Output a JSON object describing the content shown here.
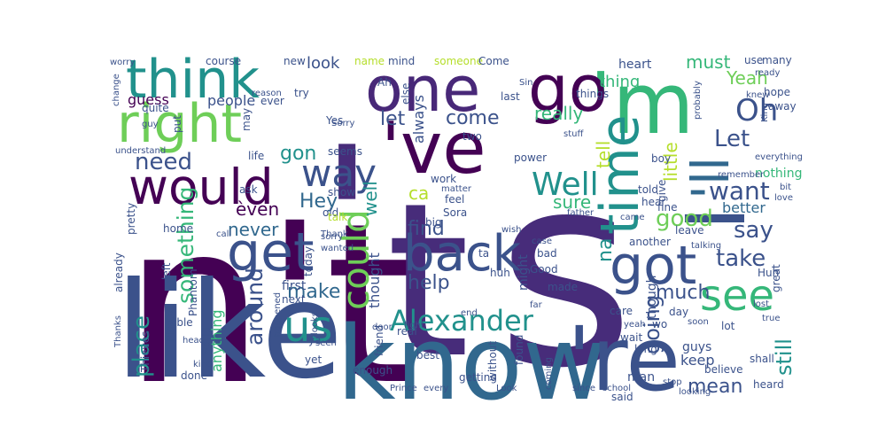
{
  "wordcloud": {
    "palette": {
      "dark_purple": "#472c7a",
      "indigo": "#3b528b",
      "blue": "#31688e",
      "teal": "#21918c",
      "green": "#35b779",
      "light_green": "#6ece58",
      "yellow_green": "#b5de2b",
      "deep": "#440154",
      "navy": "#2c4a7e"
    },
    "words": [
      {
        "text": "s",
        "color": "#472c7a"
      },
      {
        "text": "'",
        "color": "#472c7a"
      },
      {
        "text": "n't",
        "color": "#440154"
      },
      {
        "text": "t",
        "color": "#472c7a"
      },
      {
        "text": "like",
        "color": "#3b528b"
      },
      {
        "text": "know",
        "color": "#31688e"
      },
      {
        "text": "'re",
        "color": "#3b528b"
      },
      {
        "text": "one",
        "color": "#482878"
      },
      {
        "text": "'m",
        "color": "#35b779"
      },
      {
        "text": "'ve",
        "color": "#440154"
      },
      {
        "text": "go",
        "color": "#440154"
      },
      {
        "text": "I",
        "color": "#3b528b"
      },
      {
        "text": "'ll",
        "color": "#31688e"
      },
      {
        "text": "right",
        "color": "#6ece58"
      },
      {
        "text": "think",
        "color": "#21918c"
      },
      {
        "text": "time",
        "color": "#21918c"
      },
      {
        "text": "get",
        "color": "#3b528b"
      },
      {
        "text": "would",
        "color": "#440154"
      },
      {
        "text": "got",
        "color": "#3b528b"
      },
      {
        "text": "back",
        "color": "#3b528b"
      },
      {
        "text": "could",
        "color": "#6ece58"
      },
      {
        "text": "us",
        "color": "#21918c"
      },
      {
        "text": "see",
        "color": "#35b779"
      },
      {
        "text": "way",
        "color": "#3b528b"
      },
      {
        "text": "Well",
        "color": "#21918c"
      },
      {
        "text": "Alexander",
        "color": "#21918c"
      },
      {
        "text": "Oh",
        "color": "#3b528b"
      },
      {
        "text": "want",
        "color": "#3b528b"
      },
      {
        "text": "need",
        "color": "#3b528b"
      },
      {
        "text": "Let",
        "color": "#3b528b"
      },
      {
        "text": "good",
        "color": "#6ece58"
      },
      {
        "text": "something",
        "color": "#35b779"
      },
      {
        "text": "take",
        "color": "#3b528b"
      },
      {
        "text": "say",
        "color": "#3b528b"
      },
      {
        "text": "place",
        "color": "#21918c"
      },
      {
        "text": "make",
        "color": "#31688e"
      },
      {
        "text": "never",
        "color": "#31688e"
      },
      {
        "text": "around",
        "color": "#3b528b"
      },
      {
        "text": "help",
        "color": "#3b528b"
      },
      {
        "text": "find",
        "color": "#3b528b"
      },
      {
        "text": "Hey",
        "color": "#31688e"
      },
      {
        "text": "mean",
        "color": "#3b528b"
      },
      {
        "text": "much",
        "color": "#3b528b"
      },
      {
        "text": "come",
        "color": "#3b528b"
      },
      {
        "text": "let",
        "color": "#3b528b"
      },
      {
        "text": "look",
        "color": "#3b528b"
      },
      {
        "text": "must",
        "color": "#35b779"
      },
      {
        "text": "Yeah",
        "color": "#6ece58"
      },
      {
        "text": "really",
        "color": "#35b779"
      },
      {
        "text": "going",
        "color": "#3b528b"
      },
      {
        "text": "still",
        "color": "#21918c"
      },
      {
        "text": "sure",
        "color": "#35b779"
      },
      {
        "text": "tell",
        "color": "#b5de2b"
      },
      {
        "text": "little",
        "color": "#b5de2b"
      },
      {
        "text": "na",
        "color": "#21918c"
      },
      {
        "text": "gon",
        "color": "#21918c"
      },
      {
        "text": "ca",
        "color": "#b5de2b"
      },
      {
        "text": "èven",
        "color": "#440154"
      },
      {
        "text": "well",
        "color": "#21918c"
      },
      {
        "text": "thing",
        "color": "#35b779"
      },
      {
        "text": "better",
        "color": "#31688e"
      },
      {
        "text": "keep",
        "color": "#3b528b"
      },
      {
        "text": "always",
        "color": "#3b528b"
      },
      {
        "text": "thought",
        "color": "#3b528b"
      },
      {
        "text": "anything",
        "color": "#35b779"
      },
      {
        "text": "people",
        "color": "#3b528b"
      },
      {
        "text": "guess",
        "color": "#440154"
      },
      {
        "text": "heart",
        "color": "#3b528b"
      },
      {
        "text": "first",
        "color": "#3b528b"
      },
      {
        "text": "made",
        "color": "#3b528b"
      },
      {
        "text": "day",
        "color": "#3b528b"
      },
      {
        "text": "guys",
        "color": "#3b528b"
      },
      {
        "text": "man",
        "color": "#3b528b"
      },
      {
        "text": "said",
        "color": "#3b528b"
      },
      {
        "text": "long",
        "color": "#3b528b"
      },
      {
        "text": "real",
        "color": "#3b528b"
      },
      {
        "text": "believe",
        "color": "#3b528b"
      },
      {
        "text": "lot",
        "color": "#3b528b"
      },
      {
        "text": "enough",
        "color": "#3b528b"
      },
      {
        "text": "best",
        "color": "#3b528b"
      },
      {
        "text": "nothing",
        "color": "#35b779"
      },
      {
        "text": "work",
        "color": "#3b528b"
      },
      {
        "text": "care",
        "color": "#3b528b"
      },
      {
        "text": "though",
        "color": "#3b528b"
      },
      {
        "text": "heard",
        "color": "#3b528b"
      },
      {
        "text": "shall",
        "color": "#3b528b"
      },
      {
        "text": "might",
        "color": "#3b528b"
      },
      {
        "text": "next",
        "color": "#3b528b"
      },
      {
        "text": "give",
        "color": "#3b528b"
      },
      {
        "text": "world",
        "color": "#3b528b"
      },
      {
        "text": "put",
        "color": "#3b528b"
      },
      {
        "text": "quite",
        "color": "#3b528b"
      },
      {
        "text": "life",
        "color": "#3b528b"
      },
      {
        "text": "ask",
        "color": "#3b528b"
      },
      {
        "text": "left",
        "color": "#3b528b"
      },
      {
        "text": "home",
        "color": "#3b528b"
      },
      {
        "text": "Maybe",
        "color": "#3b528b"
      },
      {
        "text": "Phantom",
        "color": "#3b528b"
      },
      {
        "text": "Thieves",
        "color": "#3b528b"
      },
      {
        "text": "Sora",
        "color": "#3b528b"
      },
      {
        "text": "feel",
        "color": "#3b528b"
      },
      {
        "text": "things",
        "color": "#3b528b"
      },
      {
        "text": "last",
        "color": "#3b528b"
      },
      {
        "text": "hope",
        "color": "#3b528b"
      },
      {
        "text": "away",
        "color": "#3b528b"
      },
      {
        "text": "use",
        "color": "#3b528b"
      },
      {
        "text": "many",
        "color": "#3b528b"
      },
      {
        "text": "boy",
        "color": "#3b528b"
      },
      {
        "text": "told",
        "color": "#3b528b"
      },
      {
        "text": "power",
        "color": "#3b528b"
      },
      {
        "text": "Yes",
        "color": "#3b528b"
      },
      {
        "text": "Ah",
        "color": "#3b528b"
      },
      {
        "text": "mind",
        "color": "#3b528b"
      },
      {
        "text": "someone",
        "color": "#b5de2b"
      },
      {
        "text": "Come",
        "color": "#3b528b"
      },
      {
        "text": "course",
        "color": "#3b528b"
      },
      {
        "text": "name",
        "color": "#b5de2b"
      },
      {
        "text": "else",
        "color": "#3b528b"
      },
      {
        "text": "new",
        "color": "#3b528b"
      },
      {
        "text": "ever",
        "color": "#3b528b"
      },
      {
        "text": "try",
        "color": "#3b528b"
      },
      {
        "text": "may",
        "color": "#3b528b"
      },
      {
        "text": "seems",
        "color": "#3b528b"
      },
      {
        "text": "show",
        "color": "#3b528b"
      },
      {
        "text": "old",
        "color": "#3b528b"
      },
      {
        "text": "talk",
        "color": "#b5de2b"
      },
      {
        "text": "hear",
        "color": "#3b528b"
      },
      {
        "text": "fine",
        "color": "#3b528b"
      },
      {
        "text": "leave",
        "color": "#3b528b"
      },
      {
        "text": "another",
        "color": "#3b528b"
      },
      {
        "text": "wait",
        "color": "#3b528b"
      },
      {
        "text": "Good",
        "color": "#3b528b"
      },
      {
        "text": "huh",
        "color": "#3b528b"
      },
      {
        "text": "bad",
        "color": "#3b528b"
      },
      {
        "text": "ta",
        "color": "#3b528b"
      },
      {
        "text": "big",
        "color": "#3b528b"
      },
      {
        "text": "today",
        "color": "#3b528b"
      },
      {
        "text": "done",
        "color": "#3b528b"
      },
      {
        "text": "yet",
        "color": "#3b528b"
      },
      {
        "text": "ya",
        "color": "#3b528b"
      },
      {
        "text": "friend",
        "color": "#3b528b"
      },
      {
        "text": "getting",
        "color": "#3b528b"
      },
      {
        "text": "without",
        "color": "#3b528b"
      },
      {
        "text": "found",
        "color": "#3b528b"
      },
      {
        "text": "two",
        "color": "#3b528b"
      },
      {
        "text": "able",
        "color": "#3b528b"
      },
      {
        "text": "already",
        "color": "#3b528b"
      },
      {
        "text": "pretty",
        "color": "#3b528b"
      },
      {
        "text": "great",
        "color": "#3b528b"
      },
      {
        "text": "Huh",
        "color": "#3b528b"
      },
      {
        "text": "wo",
        "color": "#3b528b"
      },
      {
        "text": "worry",
        "color": "#3b528b"
      },
      {
        "text": "change",
        "color": "#3b528b"
      },
      {
        "text": "guy",
        "color": "#3b528b"
      },
      {
        "text": "understand",
        "color": "#3b528b"
      },
      {
        "text": "Sorry",
        "color": "#3b528b"
      },
      {
        "text": "stuff",
        "color": "#3b528b"
      },
      {
        "text": "probably",
        "color": "#3b528b"
      },
      {
        "text": "remember",
        "color": "#3b528b"
      },
      {
        "text": "everything",
        "color": "#3b528b"
      },
      {
        "text": "King",
        "color": "#3b528b"
      },
      {
        "text": "knew",
        "color": "#3b528b"
      },
      {
        "text": "ready",
        "color": "#3b528b"
      },
      {
        "text": "reason",
        "color": "#3b528b"
      },
      {
        "text": "Sin",
        "color": "#3b528b"
      },
      {
        "text": "matter",
        "color": "#3b528b"
      },
      {
        "text": "wish",
        "color": "#3b528b"
      },
      {
        "text": "case",
        "color": "#3b528b"
      },
      {
        "text": "father",
        "color": "#3b528b"
      },
      {
        "text": "came",
        "color": "#3b528b"
      },
      {
        "text": "talking",
        "color": "#3b528b"
      },
      {
        "text": "lost",
        "color": "#3b528b"
      },
      {
        "text": "true",
        "color": "#3b528b"
      },
      {
        "text": "soon",
        "color": "#3b528b"
      },
      {
        "text": "yeah",
        "color": "#3b528b"
      },
      {
        "text": "far",
        "color": "#3b528b"
      },
      {
        "text": "end",
        "color": "#3b528b"
      },
      {
        "text": "fight",
        "color": "#3b528b"
      },
      {
        "text": "door",
        "color": "#3b528b"
      },
      {
        "text": "looks",
        "color": "#3b528b"
      },
      {
        "text": "happened",
        "color": "#3b528b"
      },
      {
        "text": "sorry",
        "color": "#3b528b"
      },
      {
        "text": "wanted",
        "color": "#3b528b"
      },
      {
        "text": "Thank",
        "color": "#3b528b"
      },
      {
        "text": "call",
        "color": "#3b528b"
      },
      {
        "text": "Thanks",
        "color": "#3b528b"
      },
      {
        "text": "head",
        "color": "#3b528b"
      },
      {
        "text": "kind",
        "color": "#3b528b"
      },
      {
        "text": "seen",
        "color": "#3b528b"
      },
      {
        "text": "every",
        "color": "#3b528b"
      },
      {
        "text": "Prince",
        "color": "#3b528b"
      },
      {
        "text": "Look",
        "color": "#3b528b"
      },
      {
        "text": "coming",
        "color": "#3b528b"
      },
      {
        "text": "since",
        "color": "#3b528b"
      },
      {
        "text": "school",
        "color": "#3b528b"
      },
      {
        "text": "stop",
        "color": "#3b528b"
      },
      {
        "text": "looking",
        "color": "#3b528b"
      },
      {
        "text": "love",
        "color": "#3b528b"
      },
      {
        "text": "bit",
        "color": "#3b528b"
      }
    ]
  }
}
